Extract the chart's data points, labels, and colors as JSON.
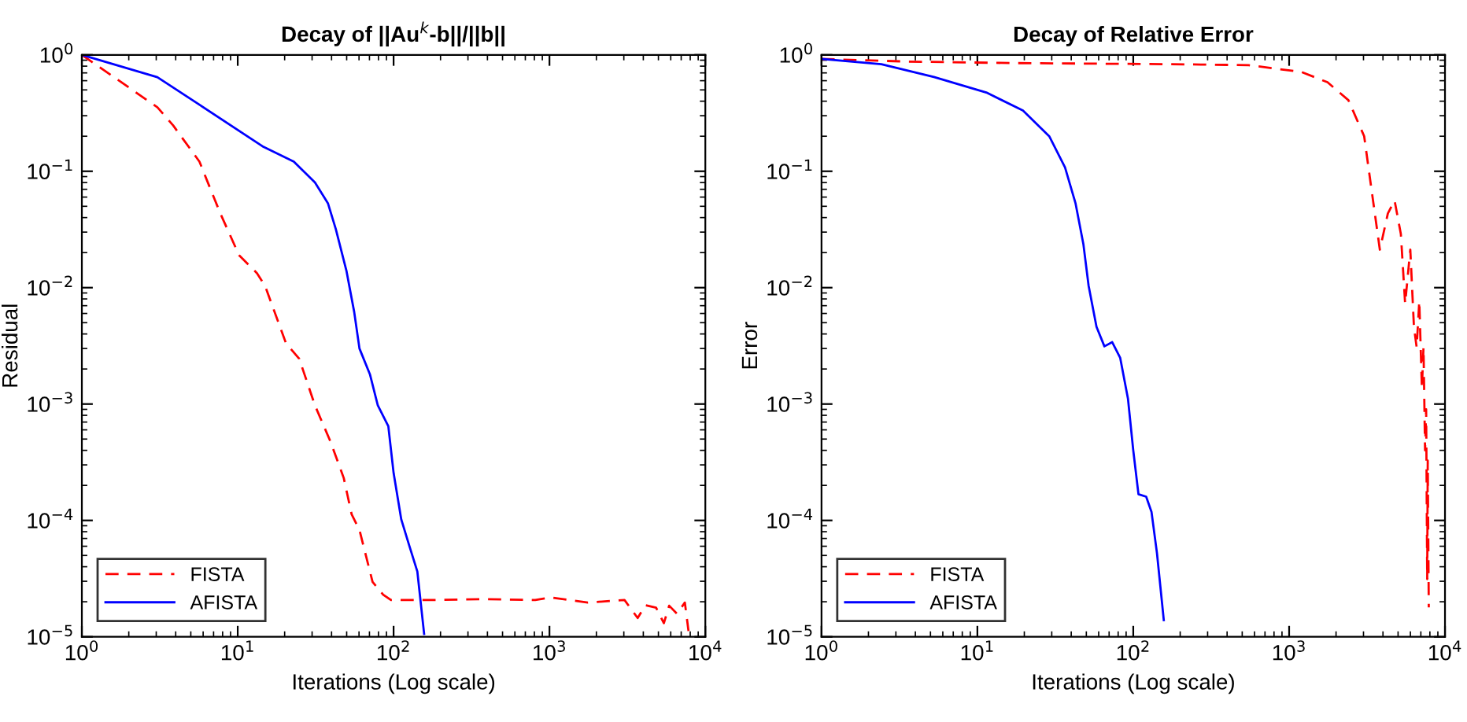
{
  "chart_data": [
    {
      "type": "line",
      "title": "Decay of ||Au$^{k}$-b||/||b||",
      "xlabel": "Iterations (Log scale)",
      "ylabel": "Residual",
      "log": "xy",
      "legend": "bottom left",
      "grid": false,
      "xlim": [
        1,
        10000
      ],
      "xticks": [
        {
          "value": 1,
          "label": "10$^{0}$"
        },
        {
          "value": 10,
          "label": "10$^{1}$"
        },
        {
          "value": 100,
          "label": "10$^{2}$"
        },
        {
          "value": 1000,
          "label": "10$^{3}$"
        },
        {
          "value": 10000,
          "label": "10$^{4}$"
        }
      ],
      "ylim": [
        1e-05,
        1
      ],
      "yticks": [
        {
          "value": 1e-05,
          "label": "10$^{−5}$"
        },
        {
          "value": 0.0001,
          "label": "10$^{−4}$"
        },
        {
          "value": 0.001,
          "label": "10$^{−3}$"
        },
        {
          "value": 0.01,
          "label": "10$^{−2}$"
        },
        {
          "value": 0.1,
          "label": "10$^{−1}$"
        },
        {
          "value": 1,
          "label": "10$^{0}$"
        }
      ],
      "series": [
        {
          "name": "FISTA",
          "color": "#ff0000",
          "line_style": "dashed",
          "x": [
            1,
            3.05,
            3.85,
            5.68,
            7.74,
            10.2,
            13.3,
            15.0,
            20.4,
            24.8,
            31.3,
            39.4,
            47.9,
            53.8,
            60.4,
            73.3,
            85.7,
            96.2,
            172,
            373,
            811,
            1023,
            1762,
            3030,
            3680,
            4130,
            4830,
            5420,
            5860,
            6580,
            7390,
            7800
          ],
          "values": [
            1,
            0.355,
            0.248,
            0.121,
            0.0433,
            0.019,
            0.0133,
            0.0103,
            0.00333,
            0.00245,
            0.000973,
            0.000474,
            0.000231,
            0.000113,
            8.28e-05,
            2.96e-05,
            2.3e-05,
            2.07e-05,
            2.07e-05,
            2.11e-05,
            2.07e-05,
            2.18e-05,
            1.97e-05,
            2.07e-05,
            1.45e-05,
            1.87e-05,
            1.78e-05,
            1.31e-05,
            1.85e-05,
            1.58e-05,
            1.97e-05,
            1.12e-05
          ]
        },
        {
          "name": "AFISTA",
          "color": "#0000ff",
          "line_style": "solid",
          "x": [
            1,
            3.05,
            5.68,
            14.4,
            22.9,
            31.3,
            37.9,
            42.6,
            49.8,
            55.9,
            60.4,
            70.5,
            79.2,
            92.5,
            100,
            112,
            126,
            142,
            157
          ],
          "values": [
            1,
            0.643,
            0.373,
            0.164,
            0.121,
            0.08,
            0.0531,
            0.0318,
            0.014,
            0.00616,
            0.003,
            0.0018,
            0.000973,
            0.000645,
            0.000256,
            0.000102,
            6.08e-05,
            3.64e-05,
            1.06e-05
          ]
        }
      ]
    },
    {
      "type": "line",
      "title": "Decay of Relative Error",
      "xlabel": "Iterations (Log scale)",
      "ylabel": "Error",
      "log": "xy",
      "legend": "bottom left",
      "grid": false,
      "xlim": [
        1,
        10000
      ],
      "xticks": [
        {
          "value": 1,
          "label": "10$^{0}$"
        },
        {
          "value": 10,
          "label": "10$^{1}$"
        },
        {
          "value": 100,
          "label": "10$^{2}$"
        },
        {
          "value": 1000,
          "label": "10$^{3}$"
        },
        {
          "value": 10000,
          "label": "10$^{4}$"
        }
      ],
      "ylim": [
        1e-05,
        1
      ],
      "yticks": [
        {
          "value": 1e-05,
          "label": "10$^{−5}$"
        },
        {
          "value": 0.0001,
          "label": "10$^{−4}$"
        },
        {
          "value": 0.001,
          "label": "10$^{−3}$"
        },
        {
          "value": 0.01,
          "label": "10$^{−2}$"
        },
        {
          "value": 0.1,
          "label": "10$^{−1}$"
        },
        {
          "value": 1,
          "label": "10$^{0}$"
        }
      ],
      "series": [
        {
          "name": "FISTA",
          "color": "#ff0000",
          "line_style": "dashed",
          "x": [
            1,
            3.57,
            16.8,
            172,
            550,
            1195,
            1762,
            2400,
            3030,
            3400,
            3820,
            4300,
            4750,
            5210,
            5550,
            5990,
            6320,
            6580,
            6840,
            7110,
            7280,
            7450,
            7570,
            7690,
            7750,
            7870
          ],
          "values": [
            0.922,
            0.876,
            0.85,
            0.832,
            0.816,
            0.714,
            0.582,
            0.408,
            0.2,
            0.0652,
            0.0212,
            0.0434,
            0.056,
            0.0289,
            0.00729,
            0.0212,
            0.00461,
            0.00307,
            0.00767,
            0.00136,
            0.00307,
            0.0004,
            0.000903,
            3.13e-05,
            0.000326,
            1.79e-05
          ]
        },
        {
          "name": "AFISTA",
          "color": "#0000ff",
          "line_style": "solid",
          "x": [
            1,
            2.42,
            5.26,
            11.4,
            19.6,
            28.9,
            36.5,
            42.6,
            47.9,
            51.7,
            58.1,
            65.3,
            73.3,
            82.4,
            92.5,
            100,
            108,
            121,
            131,
            142,
            157
          ],
          "values": [
            0.922,
            0.832,
            0.645,
            0.475,
            0.333,
            0.2,
            0.108,
            0.0532,
            0.0235,
            0.0104,
            0.00461,
            0.00313,
            0.0034,
            0.0025,
            0.00111,
            0.0004,
            0.000168,
            0.00016,
            0.000118,
            5.21e-05,
            1.39e-05
          ]
        }
      ]
    }
  ]
}
